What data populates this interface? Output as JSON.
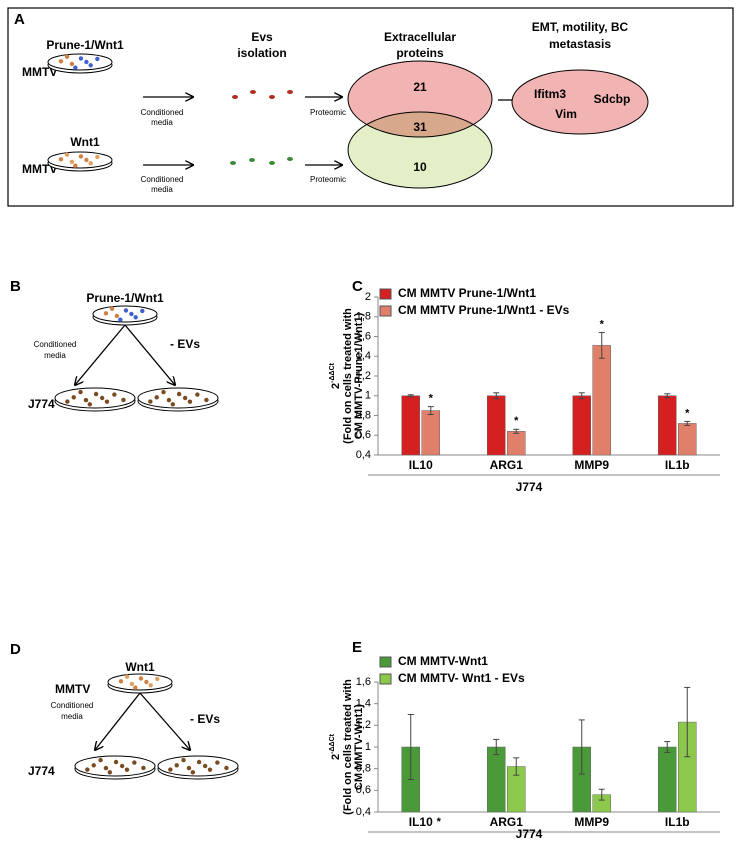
{
  "panels": {
    "a": {
      "label": "A",
      "top_strain": "MMTV",
      "top_genotype": "Prune-1/Wnt1",
      "bottom_strain": "MMTV",
      "bottom_genotype": "Wnt1",
      "top_step": [
        "Conditioned",
        "media"
      ],
      "bottom_step": [
        "Conditioned",
        "media"
      ],
      "isolation": [
        "Evs",
        "isolation"
      ],
      "top_method": "Proteomic",
      "bottom_method": "Proteomic",
      "proteins_title": [
        "Extracellular",
        "proteins"
      ],
      "venn": {
        "top_only": "21",
        "shared": "31",
        "bottom_only": "10"
      },
      "result_title": [
        "EMT, motility, BC",
        "metastasis"
      ],
      "genes": [
        "Ifitm3",
        "Vim",
        "Sdcbp"
      ]
    },
    "b": {
      "label": "B",
      "genotype": "Prune-1/Wnt1",
      "step": [
        "Conditioned",
        "media"
      ],
      "removal": "- EVs",
      "cells": "J774"
    },
    "c": {
      "label": "C"
    },
    "d": {
      "label": "D",
      "genotype": "Wnt1",
      "strain": "MMTV",
      "step": [
        "Conditioned",
        "media"
      ],
      "removal": "- EVs",
      "cells": "J774"
    },
    "e": {
      "label": "E"
    }
  },
  "chart_data": [
    {
      "type": "bar",
      "categories": [
        "IL10",
        "ARG1",
        "MMP9",
        "IL1b"
      ],
      "xlabel": "J774",
      "ylabel": {
        "base": "2",
        "exponent": "-ΔΔCt",
        "lines": [
          "(Fold on cells treated with",
          "CM MMTV-Prune1/Wnt1)"
        ]
      },
      "series": [
        {
          "name": "CM MMTV Prune-1/Wnt1",
          "color": "#d42020",
          "values": [
            1,
            1,
            1,
            1
          ],
          "errors": [
            0.01,
            0.03,
            0.03,
            0.02
          ]
        },
        {
          "name": "CM MMTV Prune-1/Wnt1 - EVs",
          "color": "#e0806a",
          "values": [
            0.85,
            0.64,
            1.51,
            0.72
          ],
          "errors": [
            0.04,
            0.02,
            0.13,
            0.02
          ],
          "significance": [
            "*",
            "*",
            "*",
            "*"
          ]
        }
      ],
      "ylim": [
        0.4,
        2
      ],
      "yticks": [
        {
          "value": 0.4,
          "label": "0,4"
        },
        {
          "value": 0.6,
          "label": "0,6"
        },
        {
          "value": 0.8,
          "label": "0,8"
        },
        1,
        {
          "value": 1.2,
          "label": "1,2"
        },
        {
          "value": 1.4,
          "label": "1,4"
        },
        {
          "value": 1.6,
          "label": "1,6"
        },
        {
          "value": 1.8,
          "label": "1,8"
        },
        2
      ]
    },
    {
      "type": "bar",
      "categories": [
        "IL10",
        "ARG1",
        "MMP9",
        "IL1b"
      ],
      "xlabel": "J774",
      "ylabel": {
        "base": "2",
        "exponent": "-ΔΔCt",
        "lines": [
          "(Fold on cells treated with",
          "CM MMTV-Wnt1)"
        ]
      },
      "series": [
        {
          "name": "CM MMTV-Wnt1",
          "color": "#4a9a3a",
          "values": [
            1,
            1,
            1,
            1
          ],
          "errors": [
            0.3,
            0.07,
            0.25,
            0.05
          ]
        },
        {
          "name": "CM MMTV- Wnt1 - EVs",
          "color": "#8cc84b",
          "values": [
            null,
            0.82,
            0.56,
            1.23
          ],
          "errors": [
            null,
            0.08,
            0.05,
            0.32
          ],
          "significance": [
            "*",
            null,
            null,
            null
          ]
        }
      ],
      "ylim": [
        0.4,
        1.6
      ],
      "yticks": [
        {
          "value": 0.4,
          "label": "0,4"
        },
        {
          "value": 0.6,
          "label": "0,6"
        },
        {
          "value": 0.8,
          "label": "0,8"
        },
        1,
        {
          "value": 1.2,
          "label": "1,2"
        },
        {
          "value": 1.4,
          "label": "1,4"
        },
        {
          "value": 1.6,
          "label": "1,6"
        }
      ]
    }
  ]
}
